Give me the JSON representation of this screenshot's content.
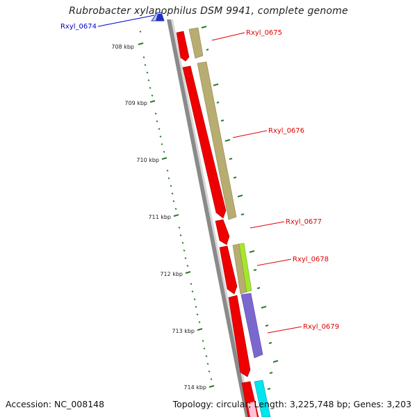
{
  "map": {
    "title": "Rubrobacter xylanophilus DSM 9941, complete genome",
    "accession": "Accession: NC_008148",
    "topology": "Topology: circular; Length: 3,225,748 bp; Genes: 3,203"
  },
  "scale_labels": [
    "708 kbp",
    "709 kbp",
    "710 kbp",
    "711 kbp",
    "712 kbp",
    "713 kbp",
    "714 kbp"
  ],
  "genes": [
    {
      "name": "Rxyl_0674",
      "color": "#0000cc"
    },
    {
      "name": "Rxyl_0675",
      "color": "#dd0000"
    },
    {
      "name": "Rxyl_0676",
      "color": "#dd0000"
    },
    {
      "name": "Rxyl_0677",
      "color": "#dd0000"
    },
    {
      "name": "Rxyl_0678",
      "color": "#dd0000"
    },
    {
      "name": "Rxyl_0679",
      "color": "#dd0000"
    }
  ],
  "colors": {
    "cds": "#ee0000",
    "function_tan": "#b8ad70",
    "function_green": "#a6e62e",
    "function_purple": "#7b68cf",
    "function_cyan": "#00e5ee",
    "backbone": "#8a8a8a",
    "ticks": "#2a7a2a"
  }
}
